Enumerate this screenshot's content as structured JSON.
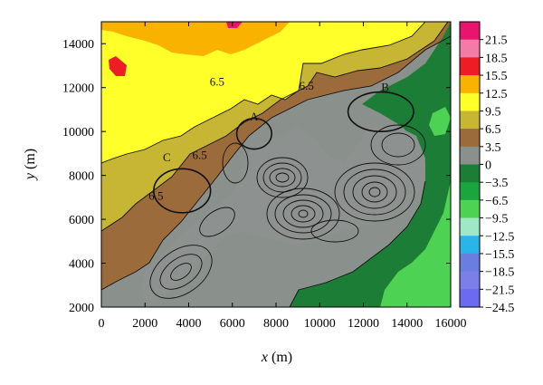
{
  "chart_data": {
    "type": "heatmap",
    "title": "",
    "xlabel": "x",
    "xunit": "(m)",
    "ylabel": "y",
    "yunit": "(m)",
    "xlim": [
      0,
      16000
    ],
    "ylim": [
      2000,
      15000
    ],
    "xticks": [
      0,
      2000,
      4000,
      6000,
      8000,
      10000,
      12000,
      14000,
      16000
    ],
    "yticks": [
      2000,
      4000,
      6000,
      8000,
      10000,
      12000,
      14000
    ],
    "grid": false,
    "colorbar": {
      "levels": [
        "21.5",
        "18.5",
        "15.5",
        "12.5",
        "9.5",
        "6.5",
        "3.5",
        "0",
        "−3.5",
        "−6.5",
        "−9.5",
        "−12.5",
        "−15.5",
        "−18.5",
        "−21.5",
        "−24.5"
      ],
      "colors": [
        "#e8156e",
        "#f47aa8",
        "#ee1c25",
        "#f9b200",
        "#ffff2a",
        "#c7b634",
        "#9c6b3b",
        "#8a918c",
        "#1c7e36",
        "#1aa53e",
        "#4ed254",
        "#9ee8c6",
        "#29b4ea",
        "#6a7edf",
        "#7c7ee9",
        "#6b6bf2"
      ]
    },
    "annotations": [
      {
        "text": "A",
        "x": 7000,
        "y": 10500
      },
      {
        "text": "B",
        "x": 13000,
        "y": 11850
      },
      {
        "text": "C",
        "x": 3000,
        "y": 8650
      },
      {
        "text": "6.5",
        "x": 5300,
        "y": 12100
      },
      {
        "text": "6.5",
        "x": 9400,
        "y": 11900
      },
      {
        "text": "6.5",
        "x": 4500,
        "y": 8750
      },
      {
        "text": "6.5",
        "x": 2500,
        "y": 6900
      }
    ],
    "circles": [
      {
        "label": "A",
        "cx": 7000,
        "cy": 9900,
        "rx": 800,
        "ry": 700
      },
      {
        "label": "B",
        "cx": 12800,
        "cy": 10900,
        "rx": 1500,
        "ry": 900
      },
      {
        "label": "C",
        "cx": 3700,
        "cy": 7300,
        "rx": 1300,
        "ry": 1000
      }
    ]
  }
}
